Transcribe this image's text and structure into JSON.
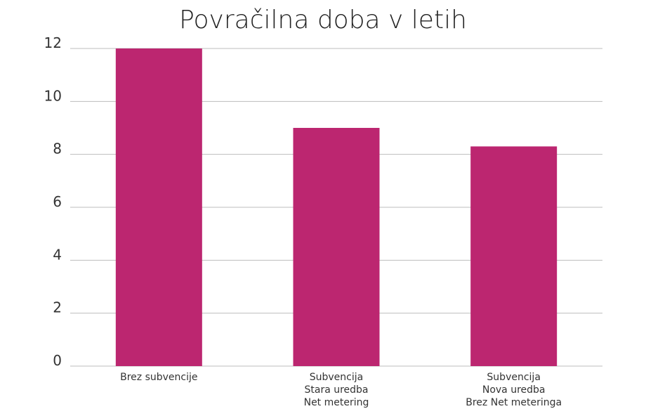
{
  "chart_data": {
    "type": "bar",
    "title": "Povračilna doba v letih",
    "categories": [
      [
        "Brez subvencije"
      ],
      [
        "Subvencija",
        "Stara uredba",
        "Net metering"
      ],
      [
        "Subvencija",
        "Nova uredba",
        "Brez Net meteringa"
      ]
    ],
    "values": [
      12,
      9,
      8.3
    ],
    "ylim": [
      0,
      12
    ],
    "yticks": [
      "0",
      "2",
      "4",
      "6",
      "8",
      "10",
      "12"
    ],
    "xlabel": "",
    "ylabel": "",
    "grid": true,
    "legend": "none",
    "bar_color": "#bc2670",
    "gridline_color": "#bdbdbd"
  }
}
